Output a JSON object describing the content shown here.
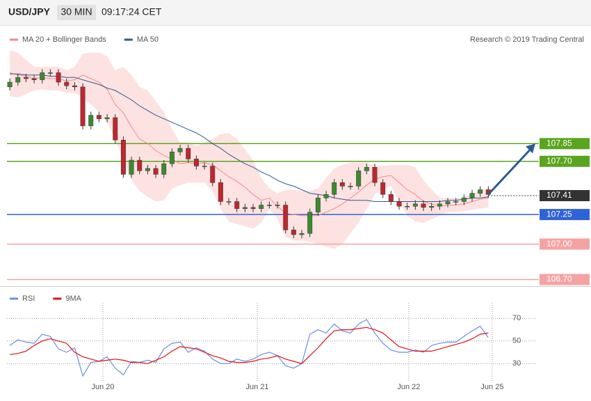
{
  "header": {
    "symbol": "USD/JPY",
    "interval": "30 MIN",
    "time": "09:17:24 CET",
    "credit": "Research © 2019 Trading Central"
  },
  "chart_data": [
    {
      "type": "candlestick",
      "categories": [
        null,
        null,
        null,
        null,
        null,
        null,
        null,
        null,
        null,
        null,
        null,
        null,
        null,
        null,
        null,
        null,
        null,
        null,
        null,
        null,
        null,
        null,
        null,
        null,
        null,
        null,
        null,
        null,
        null,
        null,
        null,
        null,
        null,
        null,
        null,
        null,
        null,
        null,
        null,
        null,
        null,
        null,
        null,
        null,
        null,
        null,
        null,
        null,
        null,
        null,
        null,
        null,
        null,
        null,
        null,
        null,
        null,
        null,
        null,
        null
      ],
      "open": [
        108.33,
        108.37,
        108.41,
        108.4,
        108.39,
        108.45,
        108.45,
        108.37,
        108.34,
        108.33,
        108.0,
        108.09,
        108.06,
        108.07,
        107.88,
        107.59,
        107.71,
        107.62,
        107.64,
        107.59,
        107.68,
        107.78,
        107.81,
        107.72,
        107.66,
        107.66,
        107.52,
        107.36,
        107.36,
        107.3,
        107.31,
        107.3,
        107.33,
        107.33,
        107.33,
        107.12,
        107.08,
        107.09,
        107.27,
        107.39,
        107.42,
        107.52,
        107.49,
        107.49,
        107.62,
        107.65,
        107.52,
        107.42,
        107.36,
        107.32,
        107.32,
        107.34,
        107.31,
        107.32,
        107.34,
        107.36,
        107.36,
        107.39,
        107.43,
        107.46
      ],
      "high": [
        108.4,
        108.44,
        108.44,
        108.43,
        108.48,
        108.48,
        108.48,
        108.4,
        108.37,
        108.36,
        108.12,
        108.12,
        108.1,
        108.1,
        107.91,
        107.74,
        107.74,
        107.67,
        107.67,
        107.71,
        107.81,
        107.84,
        107.84,
        107.75,
        107.69,
        107.69,
        107.55,
        107.39,
        107.39,
        107.34,
        107.34,
        107.36,
        107.36,
        107.36,
        107.36,
        107.15,
        107.12,
        107.3,
        107.42,
        107.45,
        107.55,
        107.55,
        107.52,
        107.65,
        107.68,
        107.68,
        107.55,
        107.45,
        107.39,
        107.35,
        107.37,
        107.37,
        107.35,
        107.37,
        107.39,
        107.39,
        107.42,
        107.46,
        107.49,
        107.49
      ],
      "low": [
        108.3,
        108.34,
        108.37,
        108.36,
        108.36,
        108.42,
        108.34,
        108.31,
        108.3,
        107.97,
        107.97,
        108.03,
        108.03,
        107.85,
        107.56,
        107.56,
        107.59,
        107.59,
        107.56,
        107.56,
        107.65,
        107.75,
        107.69,
        107.63,
        107.63,
        107.49,
        107.33,
        107.33,
        107.27,
        107.27,
        107.27,
        107.27,
        107.3,
        107.3,
        107.09,
        107.05,
        107.05,
        107.06,
        107.24,
        107.36,
        107.39,
        107.46,
        107.46,
        107.46,
        107.59,
        107.49,
        107.39,
        107.33,
        107.29,
        107.29,
        107.29,
        107.28,
        107.28,
        107.29,
        107.31,
        107.33,
        107.33,
        107.36,
        107.4,
        107.39
      ],
      "close": [
        108.37,
        108.41,
        108.4,
        108.39,
        108.45,
        108.45,
        108.37,
        108.34,
        108.33,
        108.0,
        108.09,
        108.06,
        108.07,
        107.88,
        107.59,
        107.71,
        107.62,
        107.64,
        107.59,
        107.68,
        107.78,
        107.81,
        107.72,
        107.66,
        107.66,
        107.52,
        107.36,
        107.36,
        107.3,
        107.31,
        107.3,
        107.33,
        107.33,
        107.33,
        107.12,
        107.08,
        107.09,
        107.27,
        107.39,
        107.42,
        107.52,
        107.49,
        107.49,
        107.62,
        107.65,
        107.52,
        107.42,
        107.36,
        107.32,
        107.32,
        107.34,
        107.31,
        107.32,
        107.34,
        107.36,
        107.36,
        107.39,
        107.43,
        107.46,
        107.42
      ],
      "up_color": "#3c8a2e",
      "down_color": "#c0272d",
      "series": [
        {
          "name": "MA 20 + Bollinger Bands",
          "color": "#f08a8a",
          "band_color": "#fde2e2",
          "values": [
            108.45,
            108.43,
            108.42,
            108.4,
            108.41,
            108.4,
            108.4,
            108.38,
            108.39,
            108.43,
            108.4,
            108.37,
            108.31,
            108.18,
            108.11,
            107.99,
            107.89,
            107.85,
            107.79,
            107.75,
            107.72,
            107.68,
            107.69,
            107.68,
            107.69,
            107.67,
            107.62,
            107.57,
            107.53,
            107.48,
            107.42,
            107.37,
            107.39,
            107.32,
            107.26,
            107.25,
            107.24,
            107.24,
            107.24,
            107.27,
            107.3,
            107.34,
            107.39,
            107.44,
            107.5,
            107.55,
            107.57,
            107.58,
            107.52,
            107.46,
            107.42,
            107.36,
            107.34,
            107.32,
            107.33,
            107.33,
            107.34,
            107.36,
            107.38,
            107.39
          ],
          "upper": [
            108.64,
            108.62,
            108.56,
            108.5,
            108.5,
            108.5,
            108.5,
            108.47,
            108.5,
            108.61,
            108.62,
            108.62,
            108.59,
            108.47,
            108.5,
            108.43,
            108.33,
            108.3,
            108.21,
            108.12,
            107.97,
            107.86,
            107.86,
            107.83,
            107.86,
            107.89,
            107.93,
            107.94,
            107.89,
            107.8,
            107.71,
            107.56,
            107.47,
            107.43,
            107.46,
            107.46,
            107.45,
            107.45,
            107.47,
            107.56,
            107.64,
            107.67,
            107.69,
            107.69,
            107.69,
            107.67,
            107.66,
            107.67,
            107.67,
            107.67,
            107.65,
            107.54,
            107.46,
            107.39,
            107.39,
            107.39,
            107.4,
            107.42,
            107.46,
            107.47
          ],
          "lower": [
            108.25,
            108.24,
            108.27,
            108.3,
            108.31,
            108.3,
            108.3,
            108.28,
            108.28,
            108.24,
            108.18,
            108.12,
            108.03,
            107.89,
            107.71,
            107.54,
            107.45,
            107.4,
            107.36,
            107.37,
            107.47,
            107.5,
            107.52,
            107.52,
            107.52,
            107.45,
            107.3,
            107.19,
            107.17,
            107.15,
            107.13,
            107.18,
            107.3,
            107.21,
            107.06,
            107.03,
            107.03,
            107.02,
            107.0,
            106.98,
            106.96,
            107.0,
            107.09,
            107.18,
            107.3,
            107.42,
            107.47,
            107.49,
            107.36,
            107.24,
            107.19,
            107.18,
            107.21,
            107.24,
            107.27,
            107.27,
            107.28,
            107.29,
            107.3,
            107.31
          ]
        },
        {
          "name": "MA 50",
          "color": "#2d5a94",
          "values": [
            108.44,
            108.44,
            108.43,
            108.43,
            108.43,
            108.42,
            108.42,
            108.41,
            108.41,
            108.39,
            108.37,
            108.35,
            108.32,
            108.3,
            108.26,
            108.22,
            108.17,
            108.13,
            108.09,
            108.06,
            108.03,
            108.0,
            107.97,
            107.94,
            107.9,
            107.85,
            107.81,
            107.76,
            107.72,
            107.68,
            107.65,
            107.61,
            107.58,
            107.54,
            107.51,
            107.49,
            107.46,
            107.43,
            107.42,
            107.41,
            107.39,
            107.38,
            107.37,
            107.37,
            107.37,
            107.36,
            107.36,
            107.36,
            107.36,
            107.36,
            107.36,
            107.36,
            107.36,
            107.36,
            107.37,
            107.37,
            107.38,
            107.39,
            107.39,
            107.4
          ]
        }
      ],
      "xlim": [
        -0.35,
        64.8
      ],
      "ylim": [
        106.65,
        108.7
      ],
      "levels": [
        {
          "value": 107.85,
          "color": "#5aa51e"
        },
        {
          "value": 107.7,
          "label": "107.70",
          "color": "#5aa51e"
        },
        {
          "value": 107.25,
          "color": "#2f62d6"
        },
        {
          "value": 107,
          "label": "107.00",
          "color": "#f4a3a3"
        },
        {
          "value": 106.7,
          "label": "106.70",
          "color": "#f4a3a3"
        }
      ],
      "last_price": {
        "value": 107.41,
        "color": "#333333"
      },
      "projection_color": "#2d5a94"
    },
    {
      "type": "line",
      "categories": [
        null,
        null,
        null,
        null,
        null,
        null,
        null,
        null,
        null,
        null,
        null,
        null,
        null,
        null,
        null,
        null,
        null,
        null,
        null,
        null,
        null,
        null,
        null,
        null,
        null,
        null,
        null,
        null,
        null,
        null,
        null,
        null,
        null,
        null,
        null,
        null,
        null,
        null,
        null,
        null,
        null,
        null,
        null,
        null,
        null,
        null,
        null,
        null,
        null,
        null,
        null,
        null,
        null,
        null,
        null,
        null,
        null,
        null,
        null,
        null
      ],
      "series": [
        {
          "name": "RSI",
          "color": "#6b8ee8",
          "values": [
            46,
            51,
            49,
            48,
            56,
            54,
            43,
            40,
            44,
            19,
            31,
            32,
            36,
            26,
            20,
            32,
            31,
            33,
            31,
            43,
            48,
            49,
            40,
            44,
            41,
            34,
            30,
            30,
            34,
            32,
            34,
            38,
            40,
            37,
            28,
            26,
            30,
            56,
            60,
            57,
            65,
            59,
            57,
            65,
            69,
            57,
            48,
            42,
            40,
            40,
            42,
            40,
            46,
            48,
            49,
            49,
            54,
            59,
            63,
            53
          ]
        },
        {
          "name": "9MA",
          "color": "#e01010",
          "values": [
            38,
            39,
            41,
            46,
            50,
            52,
            50,
            48,
            40,
            36,
            34,
            32,
            33,
            34,
            33,
            31,
            31,
            30,
            33,
            36,
            41,
            45,
            44,
            43,
            40,
            37,
            35,
            32,
            31,
            31,
            32,
            34,
            35,
            37,
            34,
            32,
            30,
            37,
            44,
            52,
            59,
            60,
            60,
            61,
            62,
            60,
            57,
            51,
            45,
            43,
            41,
            41,
            41,
            43,
            45,
            47,
            49,
            52,
            56,
            57
          ]
        }
      ],
      "xlim": [
        -0.35,
        64.8
      ],
      "ylim": [
        16,
        93
      ],
      "yticks": [
        30,
        50,
        70
      ],
      "xticks": [
        {
          "value": 11.48,
          "label": "Jun 20"
        },
        {
          "value": 30.51,
          "label": "Jun 21"
        },
        {
          "value": 49.19,
          "label": "Jun 22"
        },
        {
          "value": 59.48,
          "label": "Jun 25"
        }
      ],
      "grid": true
    }
  ]
}
